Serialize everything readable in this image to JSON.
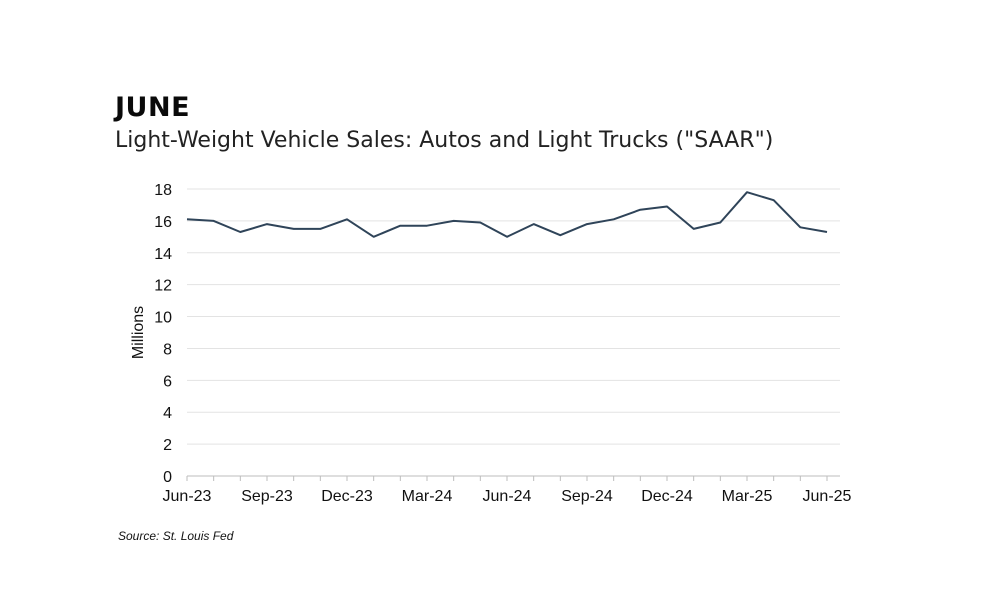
{
  "header": {
    "title": "JUNE",
    "subtitle": "Light-Weight Vehicle Sales: Autos and Light Trucks (\"SAAR\")"
  },
  "footer": {
    "source": "Source: St. Louis Fed"
  },
  "colors": {
    "line": "#2f4459",
    "grid": "#e3e3e3",
    "axis": "#bdbdbd"
  },
  "chart_data": {
    "type": "line",
    "title": "Light-Weight Vehicle Sales: Autos and Light Trucks (\"SAAR\")",
    "xlabel": "",
    "ylabel": "Millions",
    "ylim": [
      0,
      18
    ],
    "yticks": [
      0,
      2,
      4,
      6,
      8,
      10,
      12,
      14,
      16,
      18
    ],
    "x_tick_labels": [
      "Jun-23",
      "Sep-23",
      "Dec-23",
      "Mar-24",
      "Jun-24",
      "Sep-24",
      "Dec-24",
      "Mar-25",
      "Jun-25"
    ],
    "x_tick_index": [
      0,
      3,
      6,
      9,
      12,
      15,
      18,
      21,
      24
    ],
    "grid": true,
    "legend": "none",
    "series": [
      {
        "name": "Light-Weight Vehicle Sales (SAAR)",
        "x": [
          "Jun-23",
          "Jul-23",
          "Aug-23",
          "Sep-23",
          "Oct-23",
          "Nov-23",
          "Dec-23",
          "Jan-24",
          "Feb-24",
          "Mar-24",
          "Apr-24",
          "May-24",
          "Jun-24",
          "Jul-24",
          "Aug-24",
          "Sep-24",
          "Oct-24",
          "Nov-24",
          "Dec-24",
          "Jan-25",
          "Feb-25",
          "Mar-25",
          "Apr-25",
          "May-25",
          "Jun-25"
        ],
        "values": [
          16.1,
          16.0,
          15.3,
          15.8,
          15.5,
          15.5,
          16.1,
          15.0,
          15.7,
          15.7,
          16.0,
          15.9,
          15.0,
          15.8,
          15.1,
          15.8,
          16.1,
          16.7,
          16.9,
          15.5,
          15.9,
          17.8,
          17.3,
          15.6,
          15.3
        ]
      }
    ]
  }
}
